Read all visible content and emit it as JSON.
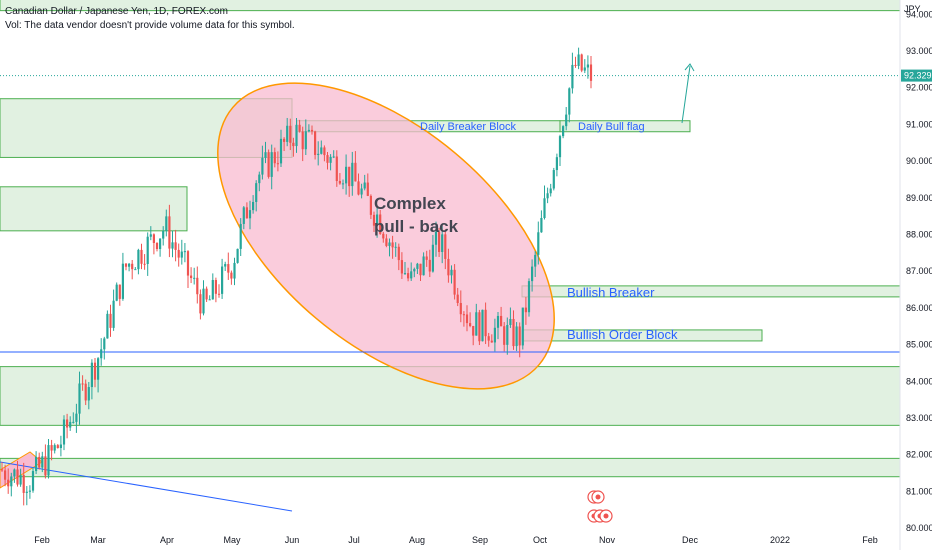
{
  "header": {
    "title": "Canadian Dollar / Japanese Yen, 1D, FOREX.com",
    "volume_note": "Vol: The data vendor doesn't provide volume data for this symbol."
  },
  "currency": "JPY",
  "colors": {
    "up": "#26a69a",
    "down": "#ef5350",
    "zone_fill": "#c8e6c9",
    "zone_stroke": "#4caf50",
    "ellipse_fill": "#f8bbd0",
    "ellipse_stroke": "#ff9800",
    "blue_line": "#2962ff",
    "last_price_bg": "#26a69a",
    "arrow": "#26a69a"
  },
  "chart_data": {
    "type": "candlestick",
    "y_axis": {
      "range": [
        79.8,
        94.5
      ],
      "ticks": [
        "80.000",
        "81.000",
        "82.000",
        "83.000",
        "84.000",
        "85.000",
        "86.000",
        "87.000",
        "88.000",
        "89.000",
        "90.000",
        "91.000",
        "92.000",
        "93.000",
        "94.000"
      ]
    },
    "x_axis": {
      "labels": [
        "Feb",
        "Mar",
        "Apr",
        "May",
        "Jun",
        "Jul",
        "Aug",
        "Sep",
        "Oct",
        "Nov",
        "Dec",
        "2022",
        "Feb"
      ]
    },
    "last_price": "92.329",
    "candle_path": [
      [
        "Jan",
        81.6
      ],
      [
        "Feb",
        81.3
      ],
      [
        "Feb",
        82.3
      ],
      [
        "Mar",
        84.8
      ],
      [
        "Mar",
        87.1
      ],
      [
        "Apr",
        88.2
      ],
      [
        "Apr",
        86.0
      ],
      [
        "May",
        87.2
      ],
      [
        "May",
        89.5
      ],
      [
        "Jun",
        90.8
      ],
      [
        "Jun",
        90.3
      ],
      [
        "Jul",
        89.6
      ],
      [
        "Jul",
        88.4
      ],
      [
        "Aug",
        86.7
      ],
      [
        "Aug",
        87.8
      ],
      [
        "Sep",
        85.6
      ],
      [
        "Sep",
        85.2
      ],
      [
        "Oct",
        88.8
      ],
      [
        "Oct",
        91.5
      ],
      [
        "Oct",
        92.6
      ],
      [
        "Oct",
        92.3
      ]
    ],
    "zones": [
      {
        "label": "",
        "top": 94.6,
        "bottom": 94.1
      },
      {
        "label": "",
        "top": 91.7,
        "bottom": 90.1
      },
      {
        "label": "",
        "top": 89.3,
        "bottom": 88.1
      },
      {
        "label": "Daily Breaker Block",
        "top": 91.1,
        "bottom": 90.8
      },
      {
        "label": "Daily Bull flag",
        "top": 91.1,
        "bottom": 90.8
      },
      {
        "label": "Bullish Breaker",
        "top": 86.6,
        "bottom": 86.3
      },
      {
        "label": "Bullish Order Block",
        "top": 85.4,
        "bottom": 85.1
      },
      {
        "label": "",
        "top": 84.4,
        "bottom": 82.8
      },
      {
        "label": "",
        "top": 81.9,
        "bottom": 81.4
      }
    ],
    "horizontal_lines": [
      84.8
    ],
    "annotations": {
      "complex_line1": "Complex",
      "complex_line2": "pull - back",
      "daily_breaker": "Daily Breaker Block",
      "daily_bull_flag": "Daily Bull flag",
      "bullish_breaker": "Bullish Breaker",
      "bullish_order_block": "Bullish Order Block"
    }
  }
}
